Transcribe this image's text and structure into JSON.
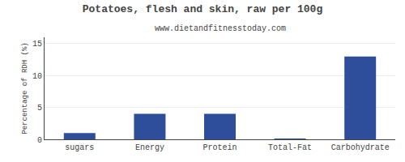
{
  "chart_data": {
    "type": "bar",
    "title": "Potatoes, flesh and skin, raw per 100g",
    "subtitle": "www.dietandfitnesstoday.com",
    "categories": [
      "sugars",
      "Energy",
      "Protein",
      "Total-Fat",
      "Carbohydrate"
    ],
    "values": [
      1.0,
      4.0,
      4.0,
      0.1,
      13.0
    ],
    "color": "#2e4d9b",
    "ylabel": "Percentage of RDH (%)",
    "ylim": [
      0,
      16
    ],
    "yticks": [
      0,
      5,
      10,
      15
    ],
    "grid": true
  }
}
